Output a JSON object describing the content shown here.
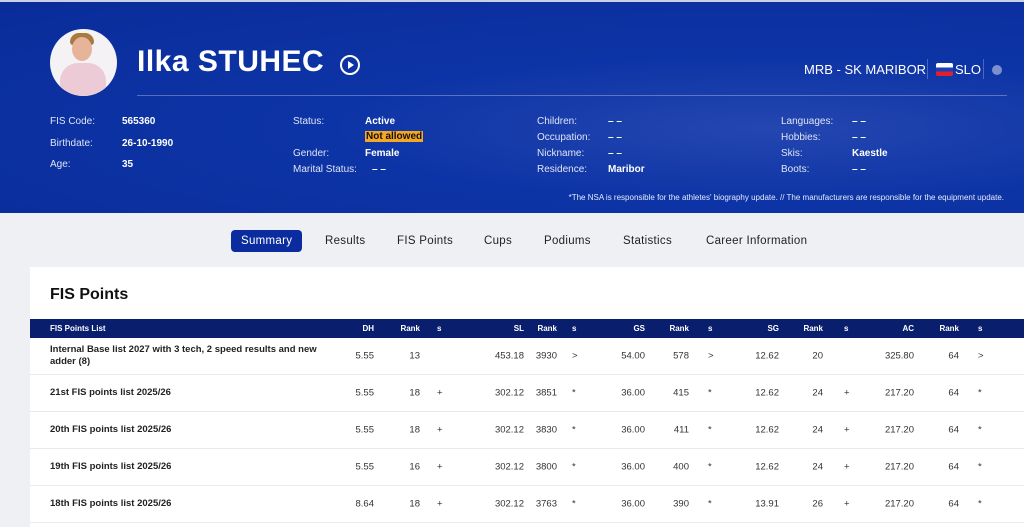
{
  "athlete": {
    "name": "Ilka STUHEC",
    "club": "MRB - SK MARIBOR",
    "nation": "SLO",
    "colors": {
      "hero": "#0a2c9a",
      "header_row": "#0a1e6e",
      "badge": "#f5a623"
    },
    "info": [
      {
        "label": "FIS Code:",
        "value": "565360"
      },
      {
        "label": "Birthdate:",
        "value": "26-10-1990"
      },
      {
        "label": "Age:",
        "value": "35"
      },
      {
        "label": "Status:",
        "value": "Active",
        "badge": "Not allowed"
      },
      {
        "label": "Gender:",
        "value": "Female"
      },
      {
        "label": "Marital Status:",
        "value": "– –"
      },
      {
        "label": "Children:",
        "value": "– –"
      },
      {
        "label": "Occupation:",
        "value": "– –"
      },
      {
        "label": "Nickname:",
        "value": "– –"
      },
      {
        "label": "Residence:",
        "value": "Maribor"
      },
      {
        "label": "Languages:",
        "value": "– –"
      },
      {
        "label": "Hobbies:",
        "value": "– –"
      },
      {
        "label": "Skis:",
        "value": "Kaestle"
      },
      {
        "label": "Boots:",
        "value": "– –"
      }
    ],
    "note": "*The NSA is responsible for the athletes' biography update. // The manufacturers are responsible for the equipment update."
  },
  "tabs": [
    {
      "label": "Summary",
      "active": true
    },
    {
      "label": "Results"
    },
    {
      "label": "FIS Points"
    },
    {
      "label": "Cups"
    },
    {
      "label": "Podiums"
    },
    {
      "label": "Statistics"
    },
    {
      "label": "Career Information"
    }
  ],
  "fis_points": {
    "title": "FIS Points",
    "headers": [
      "FIS Points List",
      "DH",
      "Rank",
      "s",
      "SL",
      "Rank",
      "s",
      "GS",
      "Rank",
      "s",
      "SG",
      "Rank",
      "s",
      "AC",
      "Rank",
      "s"
    ],
    "rows": [
      [
        "Internal Base list 2027 with 3 tech, 2 speed results and new adder (8)",
        "5.55",
        "13",
        "",
        "453.18",
        "3930",
        ">",
        "54.00",
        "578",
        ">",
        "12.62",
        "20",
        "",
        "325.80",
        "64",
        ">"
      ],
      [
        "21st FIS points list 2025/26",
        "5.55",
        "18",
        "+",
        "302.12",
        "3851",
        "*",
        "36.00",
        "415",
        "*",
        "12.62",
        "24",
        "+",
        "217.20",
        "64",
        "*"
      ],
      [
        "20th FIS points list 2025/26",
        "5.55",
        "18",
        "+",
        "302.12",
        "3830",
        "*",
        "36.00",
        "411",
        "*",
        "12.62",
        "24",
        "+",
        "217.20",
        "64",
        "*"
      ],
      [
        "19th FIS points list 2025/26",
        "5.55",
        "16",
        "+",
        "302.12",
        "3800",
        "*",
        "36.00",
        "400",
        "*",
        "12.62",
        "24",
        "+",
        "217.20",
        "64",
        "*"
      ],
      [
        "18th FIS points list 2025/26",
        "8.64",
        "18",
        "+",
        "302.12",
        "3763",
        "*",
        "36.00",
        "390",
        "*",
        "13.91",
        "26",
        "+",
        "217.20",
        "64",
        "*"
      ]
    ]
  }
}
